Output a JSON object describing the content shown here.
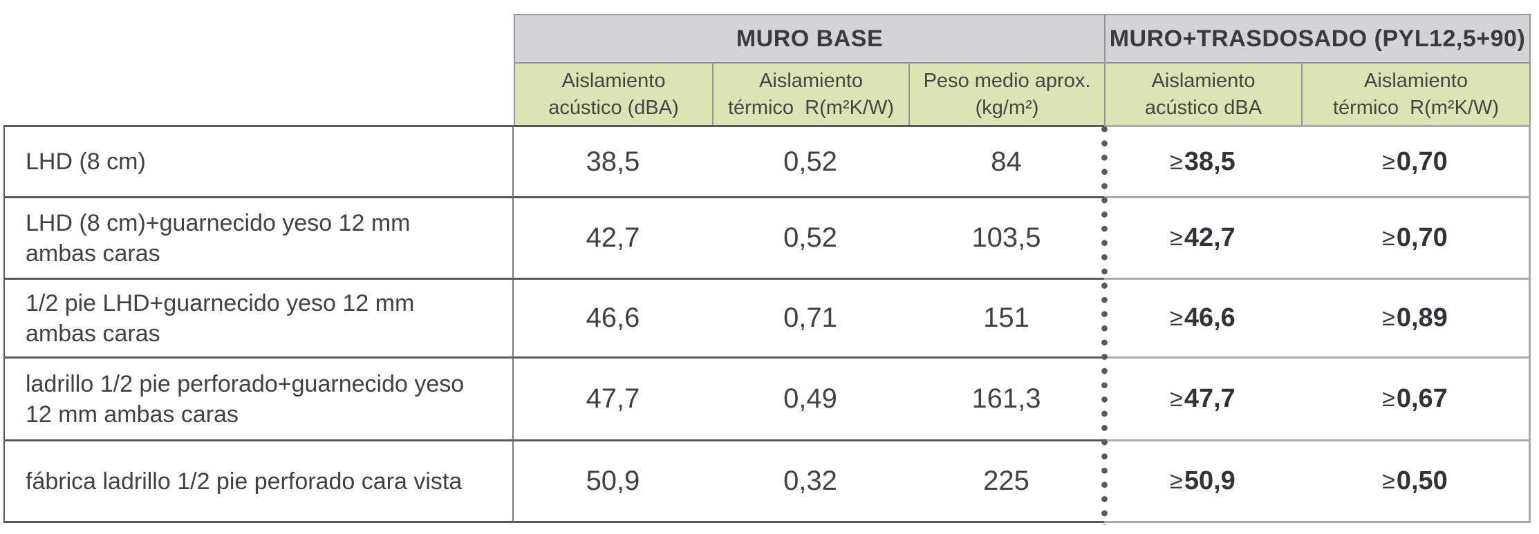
{
  "table": {
    "header_groups": [
      {
        "label": "MURO BASE"
      },
      {
        "label": "MURO+TRASDOSADO (PYL12,5+90)"
      }
    ],
    "column_headers": [
      {
        "line1": "Aislamiento",
        "line2": "acústico (dBA)"
      },
      {
        "line1": "Aislamiento",
        "line2": "térmico  R(m²K/W)"
      },
      {
        "line1": "Peso medio aprox.",
        "line2": "(kg/m²)"
      },
      {
        "line1": "Aislamiento",
        "line2": "acústico dBA"
      },
      {
        "line1": "Aislamiento",
        "line2": "térmico  R(m²K/W)"
      }
    ],
    "rows": [
      {
        "label_lines": [
          "LHD (8 cm)"
        ],
        "values": [
          "38,5",
          "0,52",
          "84"
        ],
        "tras_values": [
          {
            "op": "≥",
            "num": "38,5"
          },
          {
            "op": "≥",
            "num": "0,70"
          }
        ]
      },
      {
        "label_lines": [
          "LHD (8 cm)+guarnecido yeso 12 mm",
          "ambas caras"
        ],
        "values": [
          "42,7",
          "0,52",
          "103,5"
        ],
        "tras_values": [
          {
            "op": "≥",
            "num": "42,7"
          },
          {
            "op": "≥",
            "num": "0,70"
          }
        ]
      },
      {
        "label_lines": [
          "1/2 pie LHD+guarnecido yeso 12 mm",
          "ambas caras"
        ],
        "values": [
          "46,6",
          "0,71",
          "151"
        ],
        "tras_values": [
          {
            "op": "≥",
            "num": "46,6"
          },
          {
            "op": "≥",
            "num": "0,89"
          }
        ]
      },
      {
        "label_lines": [
          "ladrillo 1/2 pie perforado+guarnecido yeso",
          "12 mm ambas caras"
        ],
        "values": [
          "47,7",
          "0,49",
          "161,3"
        ],
        "tras_values": [
          {
            "op": "≥",
            "num": "47,7"
          },
          {
            "op": "≥",
            "num": "0,67"
          }
        ]
      },
      {
        "label_lines": [
          "fábrica ladrillo 1/2 pie perforado cara vista"
        ],
        "values": [
          "50,9",
          "0,32",
          "225"
        ],
        "tras_values": [
          {
            "op": "≥",
            "num": "50,9"
          },
          {
            "op": "≥",
            "num": "0,50"
          }
        ]
      }
    ]
  },
  "colors": {
    "header_gray_bg": "#d4d4d6",
    "header_green_bg": "#dde4b4",
    "header_border": "#939598",
    "border_dark": "#57585a",
    "border_light": "#a8aaad",
    "dotted_divider": "#58595b",
    "text": "#414042"
  }
}
